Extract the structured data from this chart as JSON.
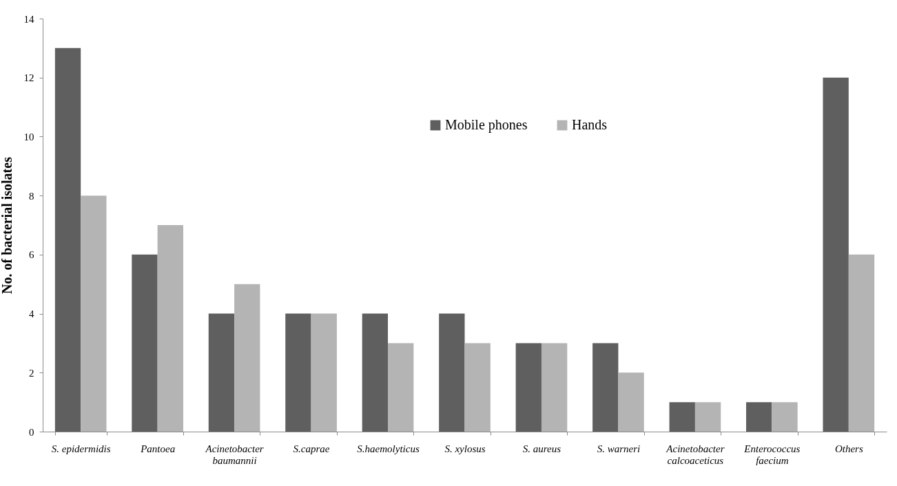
{
  "chart_data": {
    "type": "bar",
    "ylabel": "No. of bacterial isolates",
    "categories": [
      "S. epidermidis",
      "Pantoea",
      "Acinetobacter\nbaumannii",
      "S.caprae",
      "S.haemolyticus",
      "S. xylosus",
      "S. aureus",
      "S. warneri",
      "Acinetobacter\ncalcoaceticus",
      "Enterococcus\nfaecium",
      "Others"
    ],
    "series": [
      {
        "name": "Mobile phones",
        "color": "#5f5f5f",
        "values": [
          13,
          6,
          4,
          4,
          4,
          4,
          3,
          3,
          1,
          1,
          12
        ]
      },
      {
        "name": "Hands",
        "color": "#b4b4b4",
        "values": [
          8,
          7,
          5,
          4,
          3,
          3,
          3,
          2,
          1,
          1,
          6
        ]
      }
    ],
    "ylim": [
      0,
      14
    ],
    "yticks": [
      0,
      2,
      4,
      6,
      8,
      10,
      12,
      14
    ],
    "grid": false,
    "legend": "top"
  }
}
